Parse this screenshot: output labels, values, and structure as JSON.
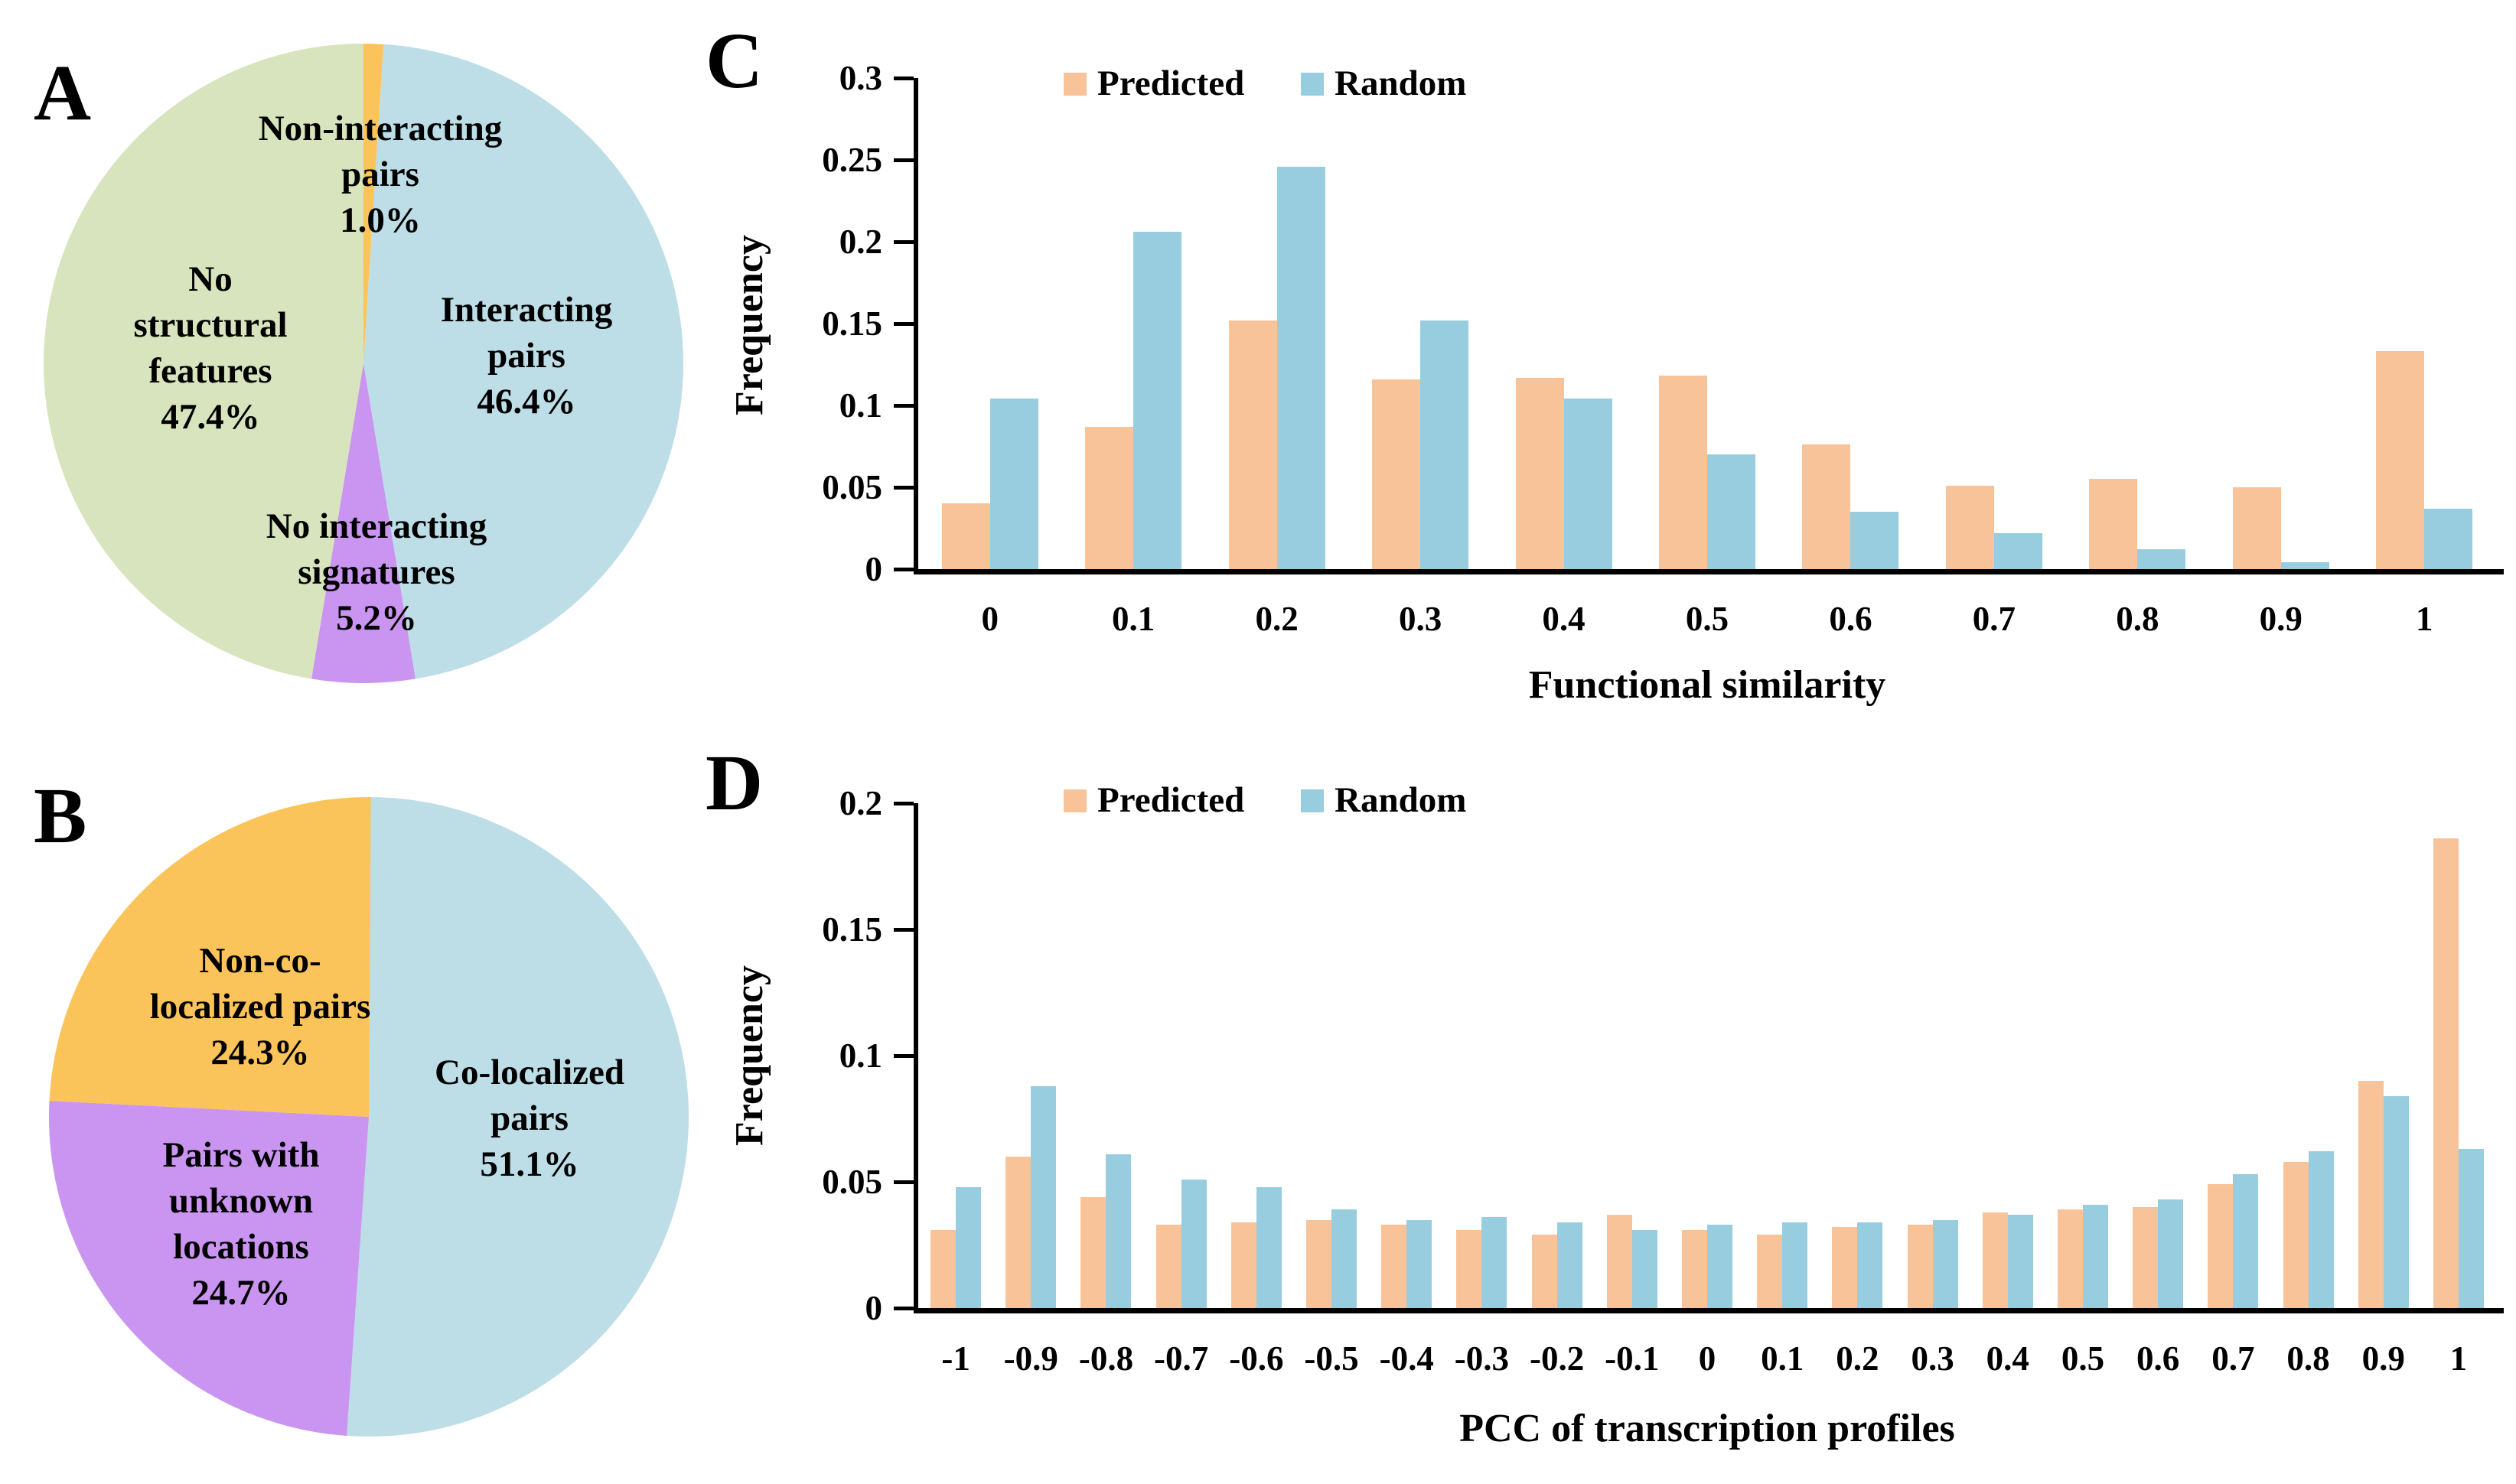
{
  "panels": {
    "A": {
      "letter": "A"
    },
    "B": {
      "letter": "B"
    },
    "C": {
      "letter": "C"
    },
    "D": {
      "letter": "D"
    }
  },
  "colors": {
    "pie_blue": "#BDDDE7",
    "pie_green": "#D7E4BD",
    "pie_purple": "#CA95F1",
    "pie_orange": "#FBC45A",
    "bar_orange": "#F9C399",
    "bar_blue": "#97CDDE",
    "axis_black": "#000000"
  },
  "chart_data": [
    {
      "panel": "A",
      "type": "pie",
      "direction": "clockwise",
      "start_angle": "12-oclock",
      "slices": [
        {
          "label": "Non-interacting pairs",
          "value_pct": 1.0,
          "color": "#FBC45A",
          "label_lines": [
            "Non-interacting",
            "pairs",
            "1.0%"
          ]
        },
        {
          "label": "Interacting pairs",
          "value_pct": 46.4,
          "color": "#BDDDE7",
          "label_lines": [
            "Interacting",
            "pairs",
            "46.4%"
          ]
        },
        {
          "label": "No interacting signatures",
          "value_pct": 5.2,
          "color": "#CA95F1",
          "label_lines": [
            "No interacting",
            "signatures",
            "5.2%"
          ]
        },
        {
          "label": "No structural features",
          "value_pct": 47.4,
          "color": "#D7E4BD",
          "label_lines": [
            "No",
            "structural",
            "features",
            "47.4%"
          ]
        }
      ]
    },
    {
      "panel": "B",
      "type": "pie",
      "direction": "clockwise",
      "start_angle": "12-oclock",
      "slices": [
        {
          "label": "Co-localized pairs",
          "value_pct": 51.1,
          "color": "#BDDDE7",
          "label_lines": [
            "Co-localized",
            "pairs",
            "51.1%"
          ]
        },
        {
          "label": "Pairs with unknown locations",
          "value_pct": 24.7,
          "color": "#CA95F1",
          "label_lines": [
            "Pairs with",
            "unknown",
            "locations",
            "24.7%"
          ]
        },
        {
          "label": "Non-co-localized pairs",
          "value_pct": 24.3,
          "color": "#FBC45A",
          "label_lines": [
            "Non-co-",
            "localized pairs",
            "24.3%"
          ]
        }
      ]
    },
    {
      "panel": "C",
      "type": "bar",
      "title": "",
      "xlabel": "Functional similarity",
      "ylabel": "Frequency",
      "ylim": [
        0,
        0.3
      ],
      "yticks": [
        "0",
        "0.05",
        "0.1",
        "0.15",
        "0.2",
        "0.25",
        "0.3"
      ],
      "legend_position": "top",
      "grid": "off",
      "categories": [
        "0",
        "0.1",
        "0.2",
        "0.3",
        "0.4",
        "0.5",
        "0.6",
        "0.7",
        "0.8",
        "0.9",
        "1"
      ],
      "series": [
        {
          "name": "Predicted",
          "color": "#F9C399",
          "values": [
            0.04,
            0.087,
            0.152,
            0.116,
            0.117,
            0.118,
            0.076,
            0.051,
            0.055,
            0.05,
            0.133
          ]
        },
        {
          "name": "Random",
          "color": "#97CDDE",
          "values": [
            0.104,
            0.206,
            0.246,
            0.152,
            0.104,
            0.07,
            0.035,
            0.022,
            0.012,
            0.004,
            0.037
          ]
        }
      ]
    },
    {
      "panel": "D",
      "type": "bar",
      "title": "",
      "xlabel": "PCC of transcription profiles",
      "ylabel": "Frequency",
      "ylim": [
        0,
        0.2
      ],
      "yticks": [
        "0",
        "0.05",
        "0.1",
        "0.15",
        "0.2"
      ],
      "legend_position": "top",
      "grid": "off",
      "categories": [
        "-1",
        "-0.9",
        "-0.8",
        "-0.7",
        "-0.6",
        "-0.5",
        "-0.4",
        "-0.3",
        "-0.2",
        "-0.1",
        "0",
        "0.1",
        "0.2",
        "0.3",
        "0.4",
        "0.5",
        "0.6",
        "0.7",
        "0.8",
        "0.9",
        "1"
      ],
      "series": [
        {
          "name": "Predicted",
          "color": "#F9C399",
          "values": [
            0.031,
            0.06,
            0.044,
            0.033,
            0.034,
            0.035,
            0.033,
            0.031,
            0.029,
            0.037,
            0.031,
            0.029,
            0.032,
            0.033,
            0.038,
            0.039,
            0.04,
            0.049,
            0.058,
            0.09,
            0.186
          ]
        },
        {
          "name": "Random",
          "color": "#97CDDE",
          "values": [
            0.048,
            0.088,
            0.061,
            0.051,
            0.048,
            0.039,
            0.035,
            0.036,
            0.034,
            0.031,
            0.033,
            0.034,
            0.034,
            0.035,
            0.037,
            0.041,
            0.043,
            0.053,
            0.062,
            0.084,
            0.063
          ]
        }
      ]
    }
  ]
}
